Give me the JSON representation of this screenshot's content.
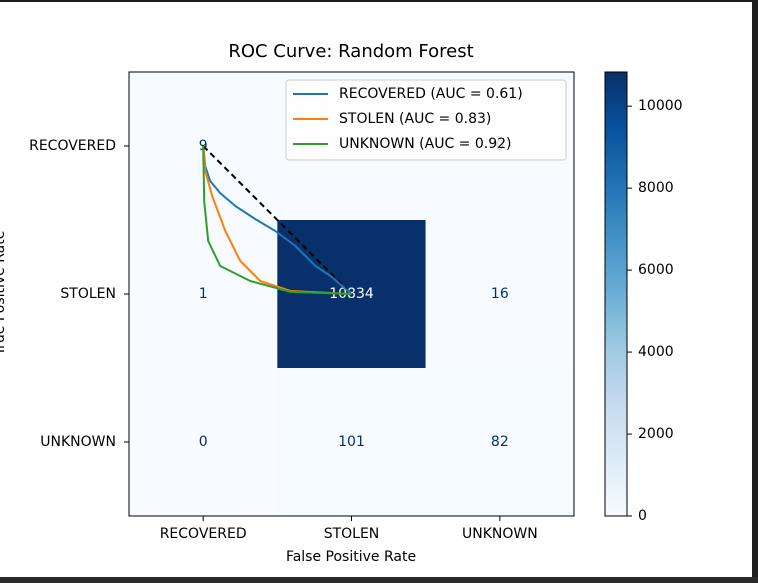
{
  "chart_data": {
    "type": "heatmap",
    "title": "ROC Curve: Random Forest",
    "xlabel": "False Positive Rate",
    "ylabel": "True Positive Rate",
    "x_categories": [
      "RECOVERED",
      "STOLEN",
      "UNKNOWN"
    ],
    "y_categories": [
      "RECOVERED",
      "STOLEN",
      "UNKNOWN"
    ],
    "matrix": [
      [
        9,
        null,
        0
      ],
      [
        1,
        10834,
        16
      ],
      [
        0,
        101,
        82
      ]
    ],
    "colormap": "Blues",
    "clim": [
      0,
      10834
    ],
    "cticks": [
      0,
      2000,
      4000,
      6000,
      8000,
      10000
    ],
    "legend": "upper right",
    "series": [
      {
        "name": "RECOVERED (AUC = 0.61)",
        "color": "#1f77b4",
        "x": [
          0,
          0.014,
          0.047,
          0.115,
          0.216,
          0.351,
          0.486,
          0.622,
          0.757,
          0.858,
          1
        ],
        "y": [
          0,
          0.135,
          0.236,
          0.318,
          0.405,
          0.493,
          0.574,
          0.676,
          0.811,
          0.878,
          1
        ]
      },
      {
        "name": "STOLEN (AUC = 0.83)",
        "color": "#ff7f0e",
        "x": [
          0,
          0.014,
          0.061,
          0.149,
          0.25,
          0.385,
          0.588,
          1
        ],
        "y": [
          0,
          0.169,
          0.338,
          0.574,
          0.777,
          0.912,
          0.98,
          1
        ]
      },
      {
        "name": "UNKNOWN (AUC = 0.92)",
        "color": "#2ca02c",
        "x": [
          0,
          0.007,
          0.034,
          0.115,
          0.318,
          0.588,
          1
        ],
        "y": [
          0,
          0.372,
          0.642,
          0.811,
          0.912,
          0.986,
          1
        ]
      }
    ],
    "reference_line": {
      "x": [
        0,
        1
      ],
      "y": [
        0,
        1
      ],
      "color": "#000000"
    }
  }
}
